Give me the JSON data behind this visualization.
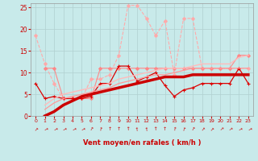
{
  "background_color": "#c8eaea",
  "grid_color": "#b0d0d0",
  "xlabel": "Vent moyen/en rafales ( km/h )",
  "xlabel_color": "#cc0000",
  "tick_color": "#cc0000",
  "xlim": [
    -0.5,
    23.5
  ],
  "ylim": [
    0,
    26
  ],
  "yticks": [
    0,
    5,
    10,
    15,
    20,
    25
  ],
  "xticks": [
    0,
    1,
    2,
    3,
    4,
    5,
    6,
    7,
    8,
    9,
    10,
    11,
    12,
    13,
    14,
    15,
    16,
    17,
    18,
    19,
    20,
    21,
    22,
    23
  ],
  "lines": [
    {
      "x": [
        0,
        1,
        2,
        3,
        4,
        5,
        6,
        7,
        8,
        9,
        10,
        11,
        12,
        13,
        14,
        15,
        16,
        17,
        18,
        19,
        20,
        21,
        22,
        23
      ],
      "y": [
        18.5,
        12.0,
        7.5,
        4.0,
        4.0,
        4.0,
        8.5,
        8.5,
        9.5,
        14.0,
        25.5,
        25.5,
        22.5,
        18.5,
        22.0,
        9.5,
        22.5,
        22.5,
        11.0,
        11.0,
        11.0,
        11.0,
        11.0,
        11.0
      ],
      "color": "#ffaaaa",
      "lw": 0.8,
      "marker": "D",
      "ms": 2.0,
      "ls": "--"
    },
    {
      "x": [
        0,
        1,
        2,
        3,
        4,
        5,
        6,
        7,
        8,
        9,
        10,
        11,
        12,
        13,
        14,
        15,
        16,
        17,
        18,
        19,
        20,
        21,
        22,
        23
      ],
      "y": [
        null,
        11.0,
        11.0,
        4.0,
        4.0,
        4.0,
        4.0,
        11.0,
        11.0,
        11.0,
        11.0,
        11.0,
        11.0,
        11.0,
        11.0,
        11.0,
        11.0,
        11.0,
        11.0,
        11.0,
        11.0,
        11.0,
        14.0,
        14.0
      ],
      "color": "#ff8888",
      "lw": 0.8,
      "marker": "D",
      "ms": 2.0,
      "ls": "-"
    },
    {
      "x": [
        0,
        1,
        2,
        3,
        4,
        5,
        6,
        7,
        8,
        9,
        10,
        11,
        12,
        13,
        14,
        15,
        16,
        17,
        18,
        19,
        20,
        21,
        22,
        23
      ],
      "y": [
        7.5,
        4.0,
        4.5,
        4.0,
        4.0,
        4.0,
        4.5,
        7.5,
        7.5,
        11.5,
        11.5,
        8.0,
        9.0,
        10.0,
        7.0,
        4.5,
        6.0,
        6.5,
        7.5,
        7.5,
        7.5,
        7.5,
        11.0,
        7.5
      ],
      "color": "#dd0000",
      "lw": 0.9,
      "marker": "+",
      "ms": 3.5,
      "ls": "-"
    },
    {
      "x": [
        1,
        2,
        3,
        4,
        5,
        6,
        7,
        8,
        9,
        10,
        11,
        12,
        13,
        14,
        15,
        16,
        17,
        18,
        19,
        20,
        21,
        22,
        23
      ],
      "y": [
        2.5,
        4.0,
        5.0,
        5.5,
        6.0,
        6.5,
        7.0,
        7.5,
        8.5,
        9.0,
        9.5,
        10.0,
        10.5,
        11.0,
        11.0,
        11.0,
        11.5,
        12.0,
        12.0,
        12.0,
        12.0,
        13.5,
        14.0
      ],
      "color": "#ffbbbb",
      "lw": 1.0,
      "marker": null,
      "ms": 0,
      "ls": "-"
    },
    {
      "x": [
        1,
        2,
        3,
        4,
        5,
        6,
        7,
        8,
        9,
        10,
        11,
        12,
        13,
        14,
        15,
        16,
        17,
        18,
        19,
        20,
        21,
        22,
        23
      ],
      "y": [
        1.5,
        3.0,
        4.0,
        4.5,
        5.0,
        5.5,
        6.0,
        6.5,
        7.5,
        8.0,
        8.5,
        9.0,
        9.5,
        9.5,
        10.0,
        10.5,
        11.0,
        11.0,
        11.0,
        11.0,
        11.0,
        11.0,
        11.0
      ],
      "color": "#ff9999",
      "lw": 0.9,
      "marker": null,
      "ms": 0,
      "ls": "-"
    },
    {
      "x": [
        1,
        2,
        3,
        4,
        5,
        6,
        7,
        8,
        9,
        10,
        11,
        12,
        13,
        14,
        15,
        16,
        17,
        18,
        19,
        20,
        21,
        22,
        23
      ],
      "y": [
        0.0,
        1.0,
        2.5,
        3.5,
        4.5,
        5.0,
        5.5,
        6.0,
        6.5,
        7.0,
        7.5,
        8.0,
        8.5,
        9.0,
        9.0,
        9.0,
        9.5,
        9.5,
        9.5,
        9.5,
        9.5,
        9.5,
        9.5
      ],
      "color": "#cc0000",
      "lw": 2.5,
      "marker": null,
      "ms": 0,
      "ls": "-"
    }
  ]
}
